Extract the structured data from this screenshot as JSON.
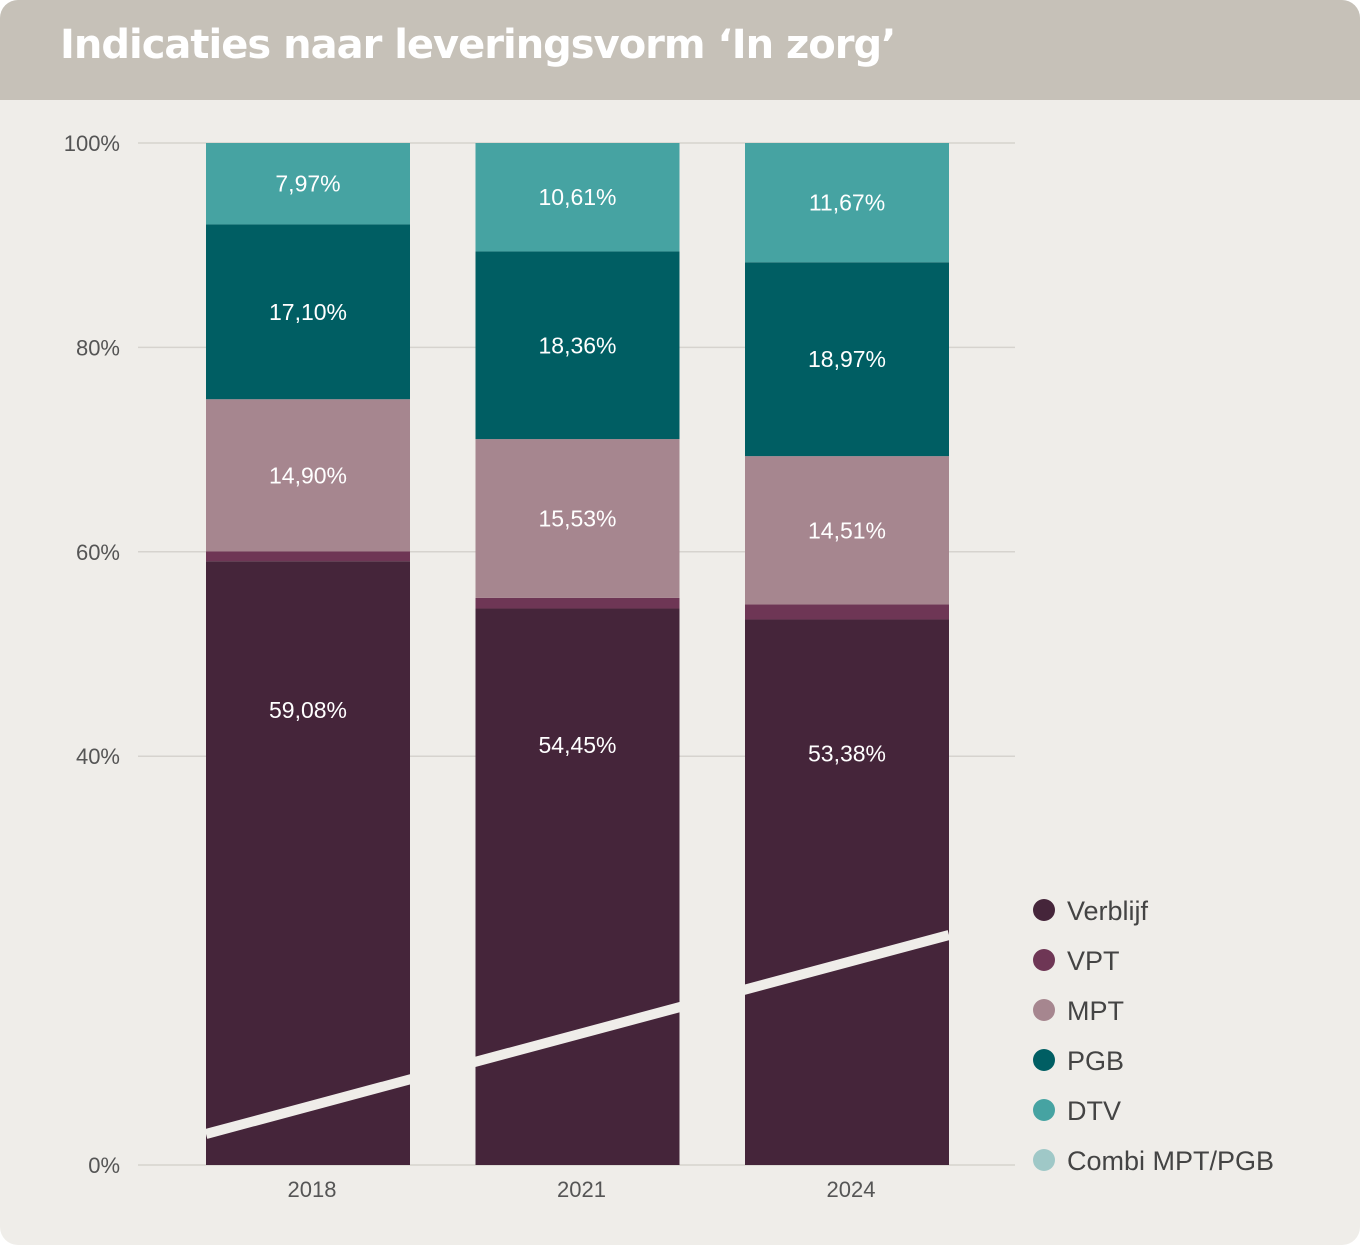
{
  "title": "Indicaties naar leveringsvorm ‘In zorg’",
  "chart_data": {
    "type": "bar",
    "stacked": true,
    "title": "Indicaties naar leveringsvorm ‘In zorg’",
    "categories": [
      "2018",
      "2021",
      "2024"
    ],
    "ylim": [
      0,
      100
    ],
    "yticks": [
      "0%",
      "40%",
      "60%",
      "80%",
      "100%"
    ],
    "ytick_values": [
      0,
      40,
      60,
      80,
      100
    ],
    "grid": true,
    "legend_position": "right",
    "series": [
      {
        "name": "Verblijf",
        "color": "#45253a",
        "values": [
          59.08,
          54.45,
          53.38
        ],
        "labels": [
          "59,08%",
          "54,45%",
          "53,38%"
        ]
      },
      {
        "name": "VPT",
        "color": "#6e3655",
        "values": [
          0.95,
          1.05,
          1.47
        ],
        "labels": [
          "",
          "",
          ""
        ]
      },
      {
        "name": "MPT",
        "color": "#a6868f",
        "values": [
          14.9,
          15.53,
          14.51
        ],
        "labels": [
          "14,90%",
          "15,53%",
          "14,51%"
        ]
      },
      {
        "name": "PGB",
        "color": "#005e63",
        "values": [
          17.1,
          18.36,
          18.97
        ],
        "labels": [
          "17,10%",
          "18,36%",
          "18,97%"
        ]
      },
      {
        "name": "DTV",
        "color": "#46a3a2",
        "values": [
          7.97,
          10.61,
          11.67
        ],
        "labels": [
          "7,97%",
          "10,61%",
          "11,67%"
        ]
      },
      {
        "name": "Combi MPT/PGB",
        "color": "#9fc8c7",
        "values": [
          0,
          0,
          0
        ],
        "labels": [
          "",
          "",
          ""
        ]
      }
    ]
  }
}
